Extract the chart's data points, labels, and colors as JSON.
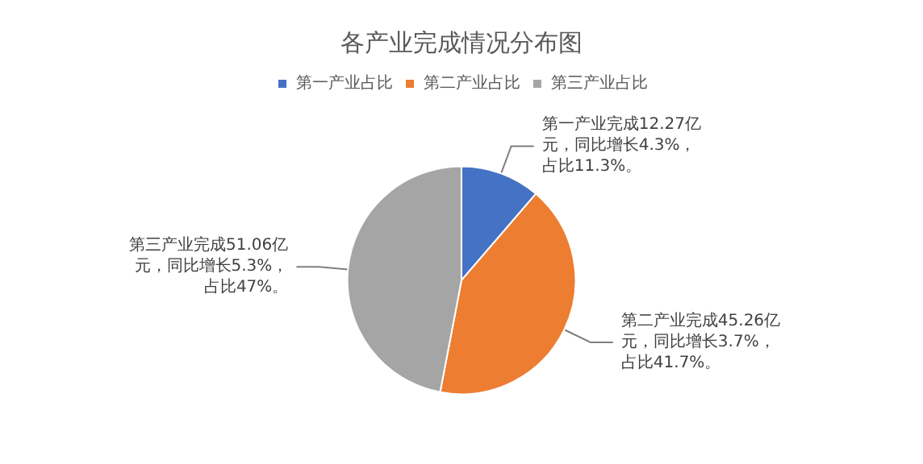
{
  "chart_data": {
    "type": "pie",
    "title": "各产业完成情况分布图",
    "categories": [
      "第一产业占比",
      "第二产业占比",
      "第三产业占比"
    ],
    "values": [
      11.3,
      41.7,
      47
    ],
    "colors": [
      "#4472c4",
      "#ed7d31",
      "#a5a5a5"
    ],
    "legend": "top",
    "annotations": [
      "第一产业完成12.27亿元，同比增长4.3%，占比11.3%。",
      "第二产业完成45.26亿元，同比增长3.7%，占比41.7%。",
      "第三产业完成51.06亿元，同比增长5.3%，占比47%。"
    ]
  }
}
